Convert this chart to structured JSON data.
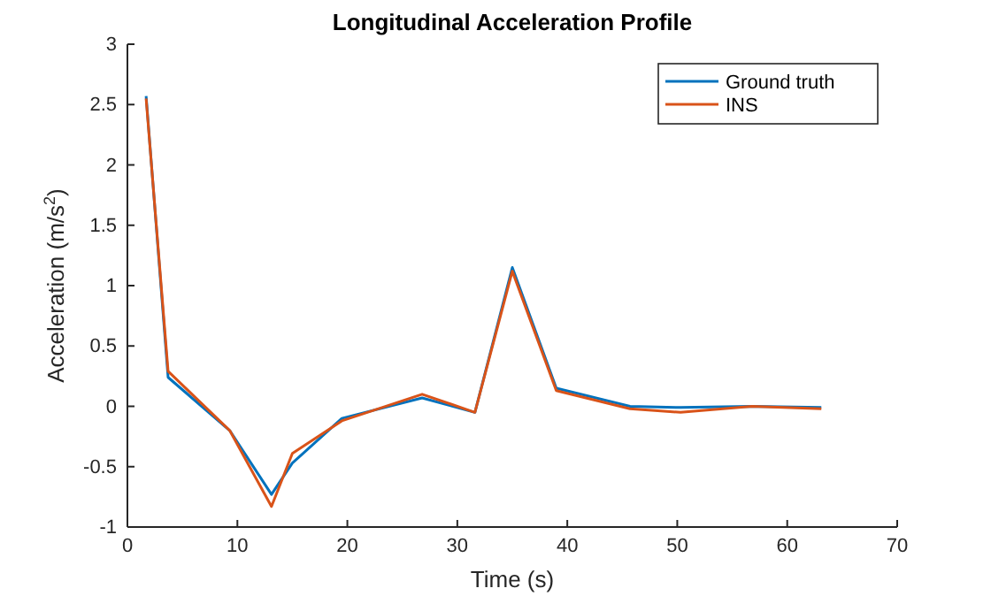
{
  "chart_data": {
    "type": "line",
    "title": "Longitudinal Acceleration Profile",
    "xlabel": "Time (s)",
    "ylabel": "Acceleration  (m/s$^{2}$)",
    "x": [
      1.7,
      3.7,
      9.3,
      13.1,
      15,
      19.5,
      26.8,
      31.6,
      35,
      39,
      45.7,
      50.3,
      56.8,
      63.1
    ],
    "series": [
      {
        "name": "Ground truth",
        "color": "#0072bd",
        "values": [
          2.57,
          0.24,
          -0.2,
          -0.73,
          -0.47,
          -0.1,
          0.07,
          -0.05,
          1.15,
          0.15,
          0.0,
          -0.01,
          0.0,
          -0.01
        ]
      },
      {
        "name": "INS",
        "color": "#d95319",
        "values": [
          2.55,
          0.29,
          -0.2,
          -0.83,
          -0.39,
          -0.12,
          0.1,
          -0.05,
          1.12,
          0.13,
          -0.02,
          -0.05,
          0.0,
          -0.02
        ]
      }
    ],
    "xlim": [
      0,
      70
    ],
    "xticks": [
      0,
      10,
      20,
      30,
      40,
      50,
      60,
      70
    ],
    "ylim": [
      -1,
      3
    ],
    "yticks": [
      -1,
      -0.5,
      0,
      0.5,
      1,
      1.5,
      2,
      2.5,
      3
    ],
    "grid": false,
    "legend": "top right",
    "marker": "none",
    "line_style": "solid"
  }
}
